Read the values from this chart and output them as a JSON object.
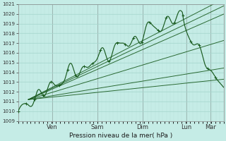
{
  "xlabel": "Pression niveau de la mer( hPa )",
  "ylim": [
    1009,
    1021
  ],
  "yticks": [
    1009,
    1010,
    1011,
    1012,
    1013,
    1014,
    1015,
    1016,
    1017,
    1018,
    1019,
    1020
  ],
  "background_color": "#c5ece6",
  "grid_color_major": "#a8d8d0",
  "grid_color_minor": "#b8e0d8",
  "line_color": "#1a5c20",
  "days": [
    "Ven",
    "Sam",
    "Dim",
    "Lun",
    "Mar"
  ],
  "day_positions": [
    0.165,
    0.385,
    0.605,
    0.82,
    0.935
  ],
  "xlim": [
    0,
    1
  ]
}
